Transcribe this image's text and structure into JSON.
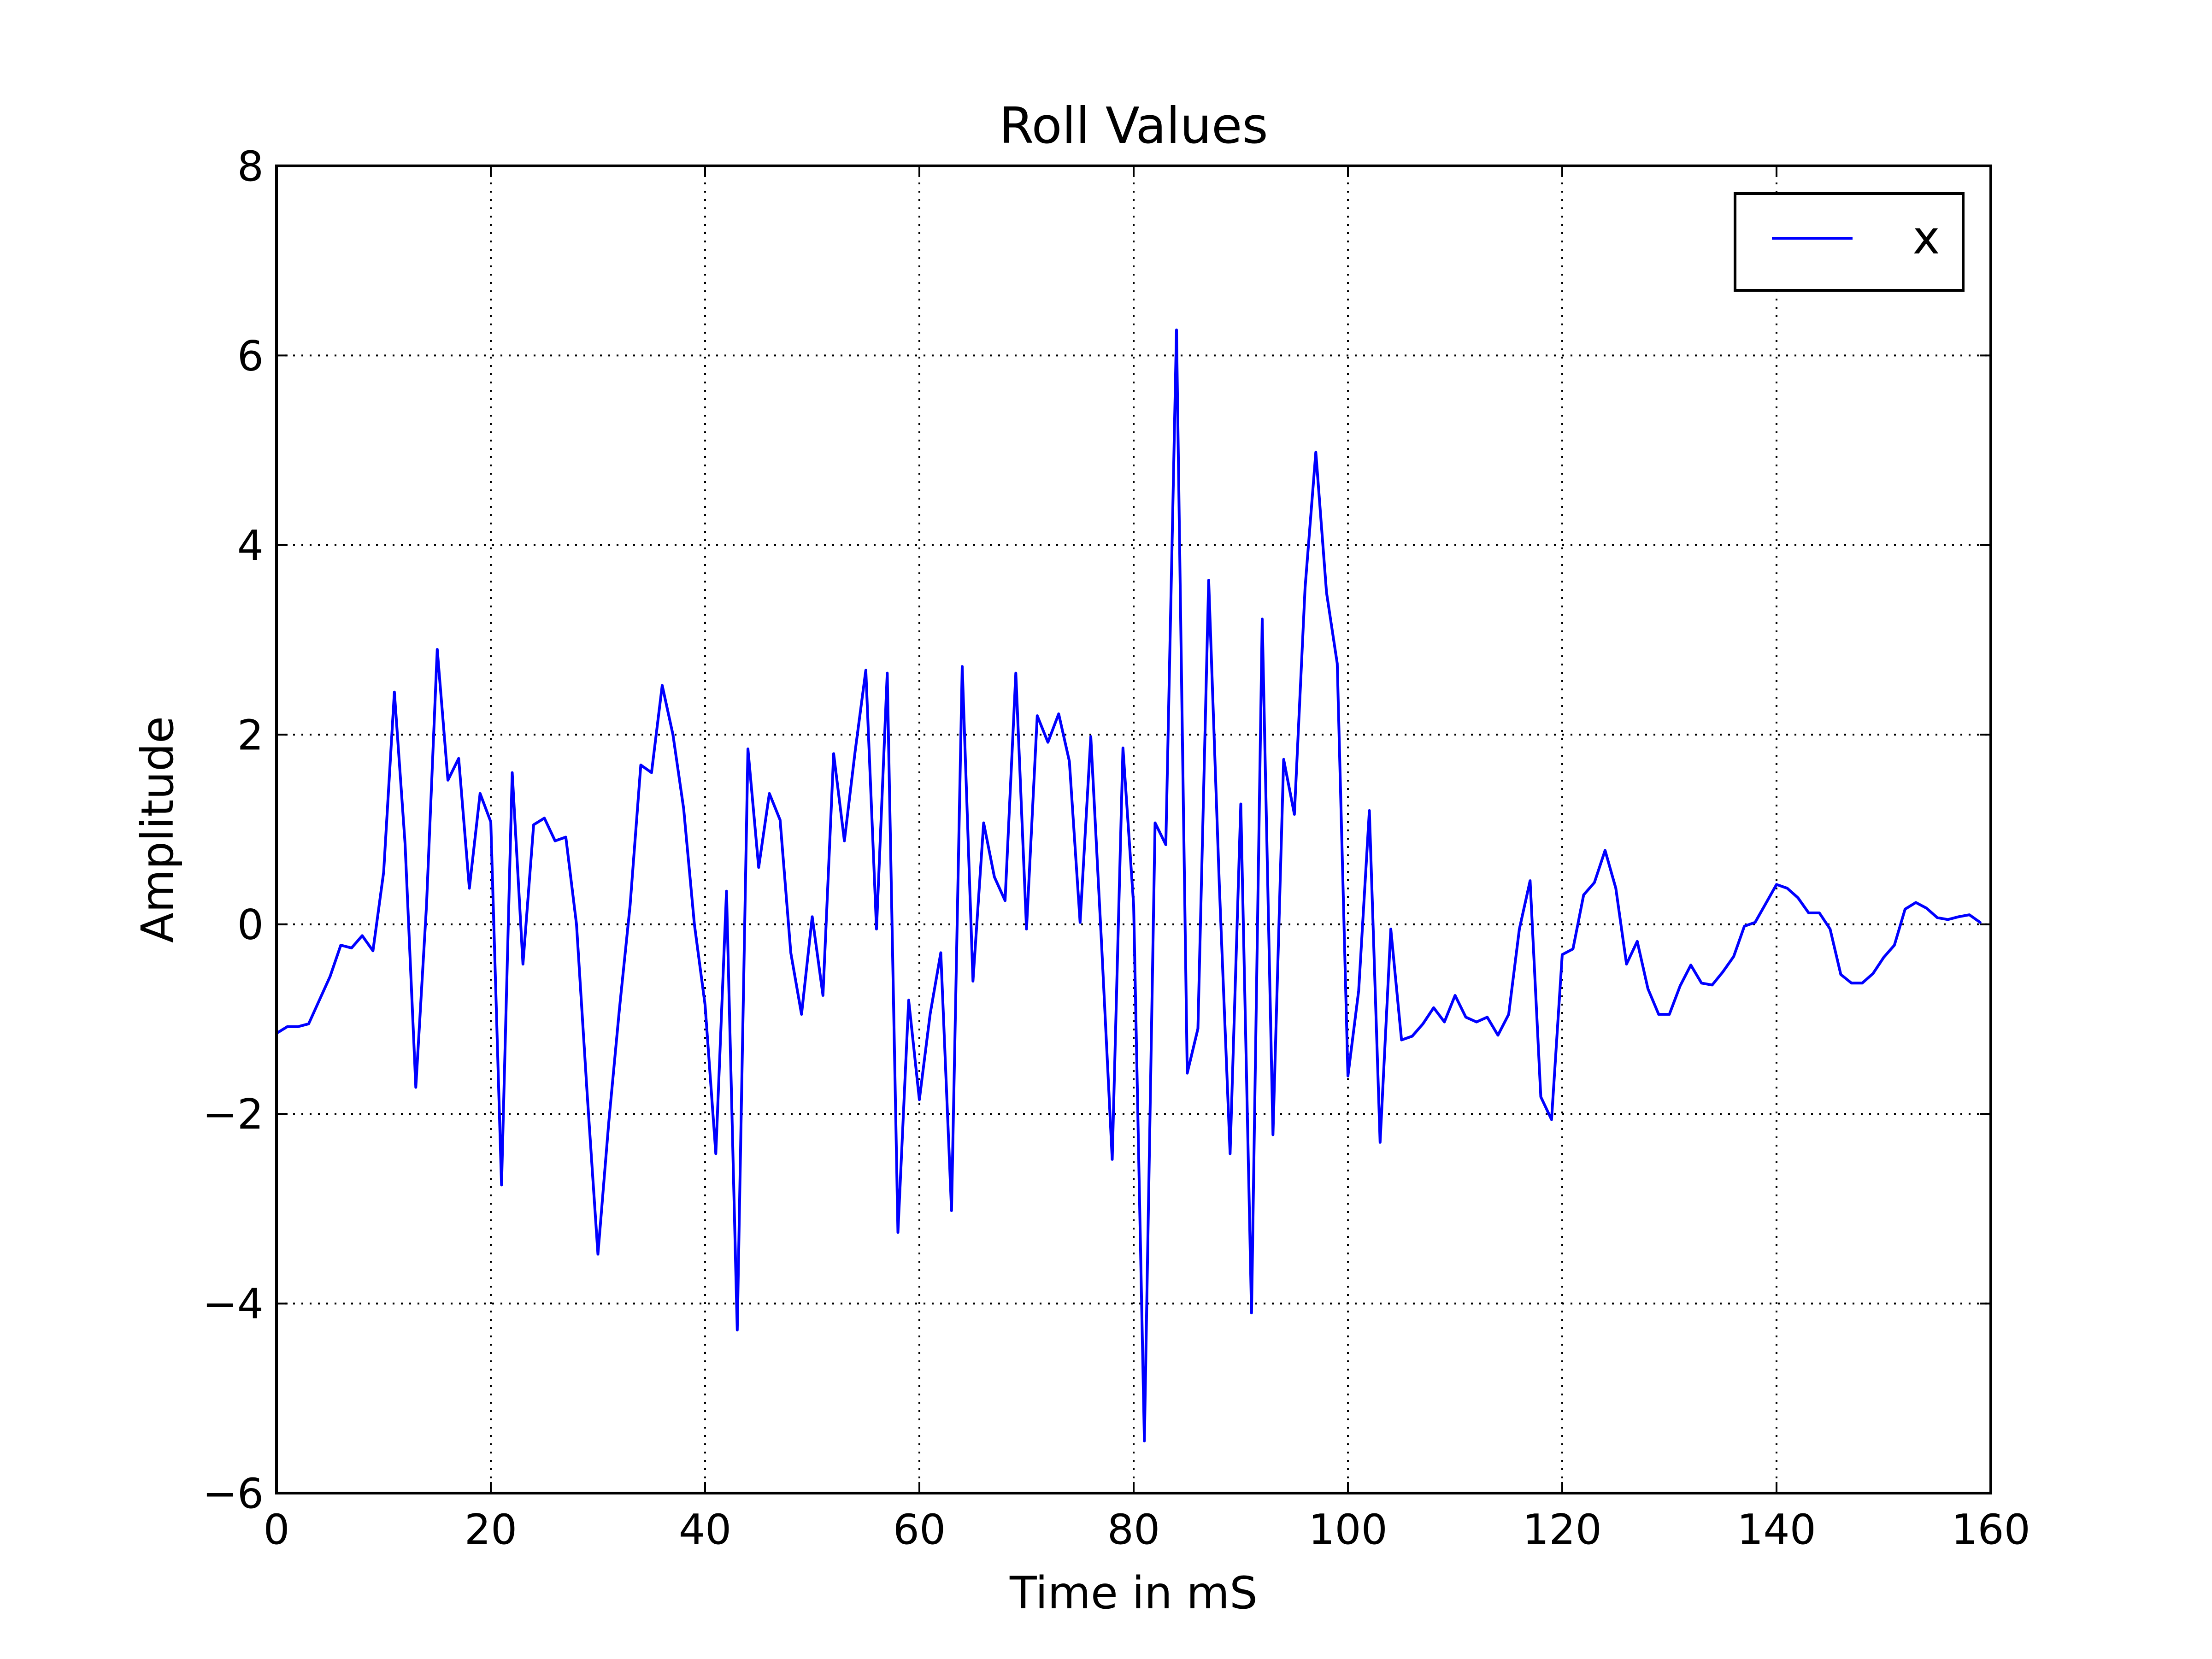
{
  "chart_data": {
    "type": "line",
    "title": "Roll Values",
    "xlabel": "Time in mS",
    "ylabel": "Amplitude",
    "xlim": [
      0,
      160
    ],
    "ylim": [
      -6,
      8
    ],
    "xticks": [
      0,
      20,
      40,
      60,
      80,
      100,
      120,
      140,
      160
    ],
    "yticks": [
      -6,
      -4,
      -2,
      0,
      2,
      4,
      6,
      8
    ],
    "xtick_labels": [
      "0",
      "20",
      "40",
      "60",
      "80",
      "100",
      "120",
      "140",
      "160"
    ],
    "ytick_labels": [
      "−6",
      "−4",
      "−2",
      "0",
      "2",
      "4",
      "6",
      "8"
    ],
    "grid": true,
    "legend_position": "top-right",
    "colors": {
      "series": "#0000ff",
      "text": "#000000",
      "background": "#ffffff"
    },
    "series": [
      {
        "name": "x",
        "x": [
          0,
          1,
          2,
          3,
          4,
          5,
          6,
          7,
          8,
          9,
          10,
          11,
          12,
          13,
          14,
          15,
          16,
          17,
          18,
          19,
          20,
          21,
          22,
          23,
          24,
          25,
          26,
          27,
          28,
          29,
          30,
          31,
          32,
          33,
          34,
          35,
          36,
          37,
          38,
          39,
          40,
          41,
          42,
          43,
          44,
          45,
          46,
          47,
          48,
          49,
          50,
          51,
          52,
          53,
          54,
          55,
          56,
          57,
          58,
          59,
          60,
          61,
          62,
          63,
          64,
          65,
          66,
          67,
          68,
          69,
          70,
          71,
          72,
          73,
          74,
          75,
          76,
          77,
          78,
          79,
          80,
          81,
          82,
          83,
          84,
          85,
          86,
          87,
          88,
          89,
          90,
          91,
          92,
          93,
          94,
          95,
          96,
          97,
          98,
          99,
          100,
          101,
          102,
          103,
          104,
          105,
          106,
          107,
          108,
          109,
          110,
          111,
          112,
          113,
          114,
          115,
          116,
          117,
          118,
          119,
          120,
          121,
          122,
          123,
          124,
          125,
          126,
          127,
          128,
          129,
          130,
          131,
          132,
          133,
          134,
          135,
          136,
          137,
          138,
          139,
          140,
          141,
          142,
          143,
          144,
          145,
          146,
          147,
          148,
          149,
          150,
          151,
          152,
          153,
          154,
          155,
          156,
          157,
          158,
          159
        ],
        "y": [
          -1.15,
          -1.08,
          -1.08,
          -1.05,
          -0.8,
          -0.55,
          -0.22,
          -0.25,
          -0.12,
          -0.28,
          0.55,
          2.45,
          0.85,
          -1.72,
          0.2,
          2.9,
          1.52,
          1.75,
          0.38,
          1.38,
          1.08,
          -2.75,
          1.6,
          -0.42,
          1.05,
          1.12,
          0.88,
          0.92,
          0.0,
          -1.8,
          -3.48,
          -2.1,
          -0.9,
          0.2,
          1.68,
          1.6,
          2.52,
          2.0,
          1.22,
          0.0,
          -0.85,
          -2.42,
          0.35,
          -4.28,
          1.85,
          0.6,
          1.38,
          1.1,
          -0.3,
          -0.95,
          0.08,
          -0.75,
          1.8,
          0.88,
          1.82,
          2.68,
          -0.05,
          2.65,
          -3.25,
          -0.8,
          -1.85,
          -0.95,
          -0.3,
          -3.02,
          2.72,
          -0.6,
          1.07,
          0.5,
          0.25,
          2.65,
          -0.05,
          2.2,
          1.92,
          2.22,
          1.72,
          0.02,
          1.98,
          -0.2,
          -2.48,
          1.86,
          0.2,
          -5.45,
          1.07,
          0.84,
          6.27,
          -1.57,
          -1.1,
          3.63,
          0.4,
          -2.42,
          1.27,
          -4.1,
          3.22,
          -2.22,
          1.74,
          1.16,
          3.55,
          4.98,
          3.5,
          2.75,
          -1.6,
          -0.7,
          1.2,
          -2.3,
          -0.05,
          -1.22,
          -1.18,
          -1.05,
          -0.88,
          -1.03,
          -0.75,
          -0.98,
          -1.03,
          -0.98,
          -1.17,
          -0.95,
          -0.05,
          0.46,
          -1.82,
          -2.06,
          -0.32,
          -0.26,
          0.31,
          0.44,
          0.78,
          0.38,
          -0.42,
          -0.18,
          -0.68,
          -0.95,
          -0.95,
          -0.65,
          -0.43,
          -0.62,
          -0.64,
          -0.5,
          -0.34,
          -0.02,
          0.02,
          0.22,
          0.42,
          0.38,
          0.28,
          0.12,
          0.12,
          -0.05,
          -0.53,
          -0.62,
          -0.62,
          -0.52,
          -0.35,
          -0.22,
          0.16,
          0.23,
          0.17,
          0.07,
          0.05,
          0.08,
          0.1,
          0.02
        ]
      }
    ]
  }
}
